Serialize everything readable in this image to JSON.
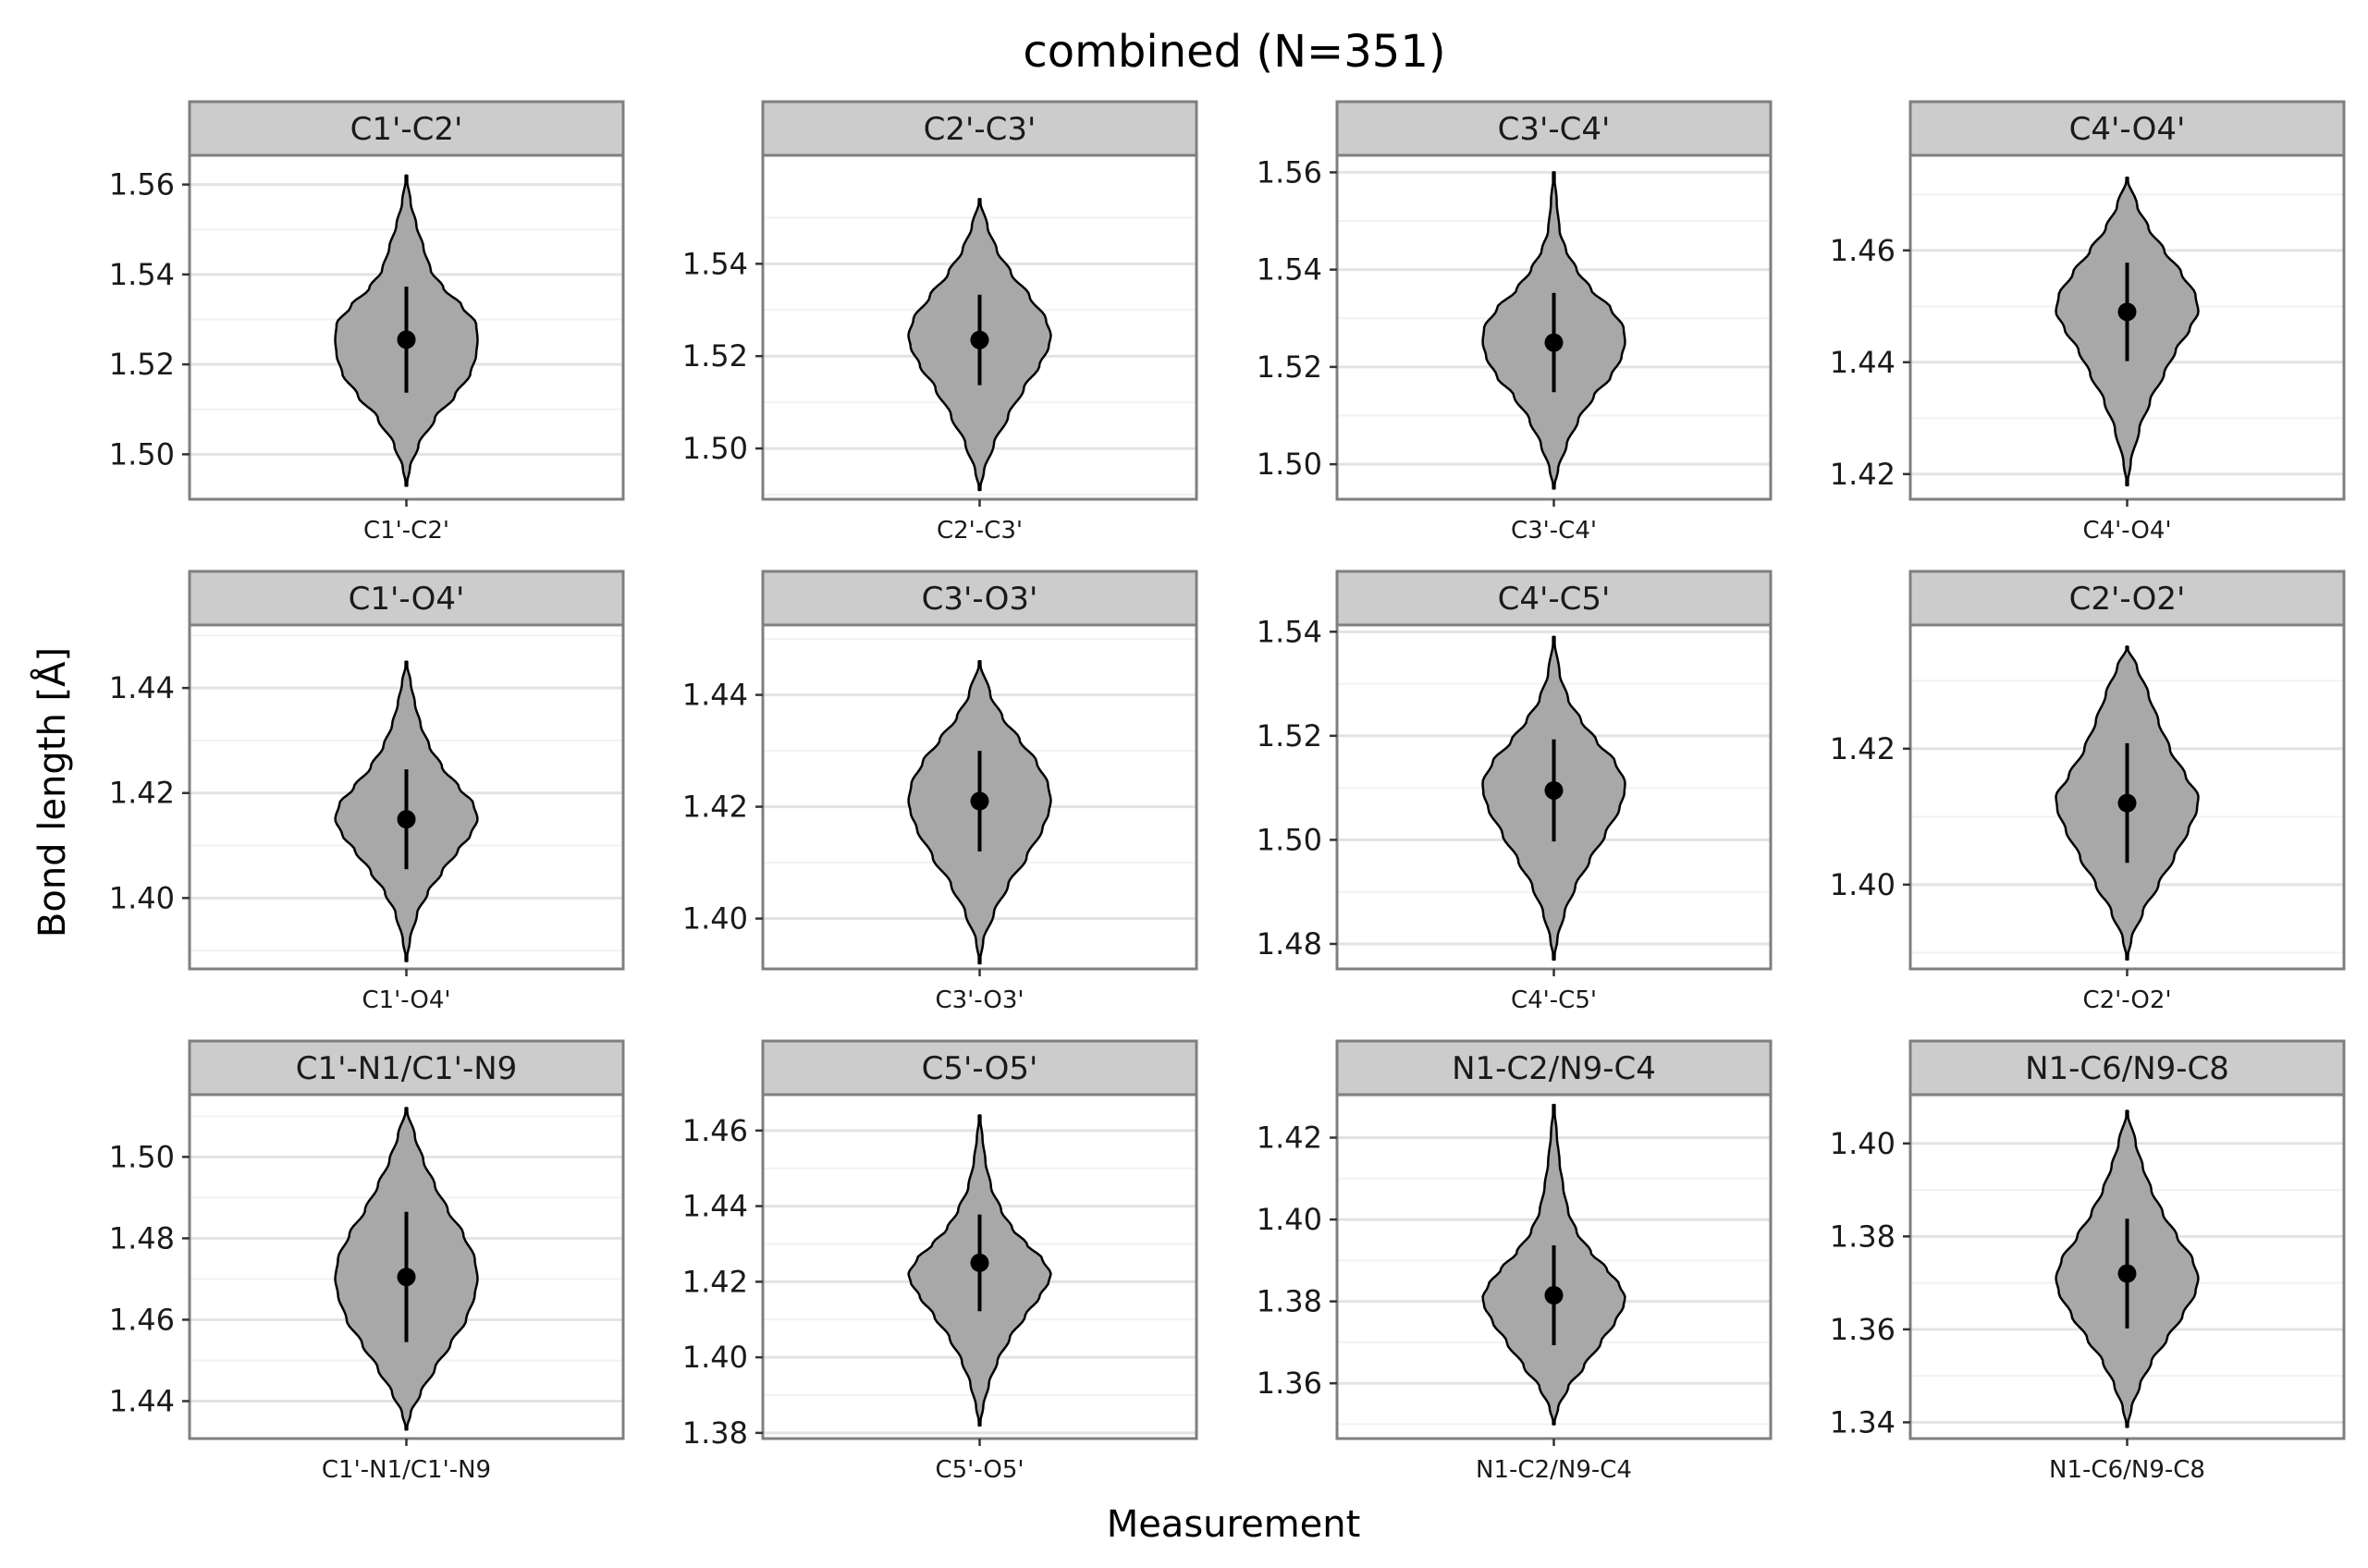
{
  "chart_data": {
    "type": "violin",
    "title": "combined (N=351)",
    "xlabel": "Measurement",
    "ylabel": "Bond length [Å]",
    "grid": true,
    "layout": "facet 3 rows × 4 columns, independent y scales",
    "colors": {
      "violin_fill": "#a8a8a8",
      "strip_fill": "#cccccc",
      "panel_border": "#7f7f7f",
      "grid_major": "#e3e3e3",
      "grid_minor": "#f2f2f2"
    },
    "panels": [
      {
        "label": "C1'-C2'",
        "ylim": [
          1.49,
          1.5665
        ],
        "yticks": [
          1.5,
          1.52,
          1.54,
          1.56
        ],
        "min": 1.493,
        "max": 1.562,
        "mean": 1.5255,
        "sd": 0.0118,
        "shape": [
          [
            1.493,
            0.0
          ],
          [
            1.497,
            0.05
          ],
          [
            1.502,
            0.17
          ],
          [
            1.508,
            0.4
          ],
          [
            1.513,
            0.68
          ],
          [
            1.518,
            0.9
          ],
          [
            1.522,
            0.98
          ],
          [
            1.5255,
            1.0
          ],
          [
            1.529,
            0.98
          ],
          [
            1.533,
            0.78
          ],
          [
            1.537,
            0.52
          ],
          [
            1.541,
            0.34
          ],
          [
            1.546,
            0.24
          ],
          [
            1.551,
            0.14
          ],
          [
            1.556,
            0.06
          ],
          [
            1.562,
            0.0
          ]
        ]
      },
      {
        "label": "C2'-C3'",
        "ylim": [
          1.489,
          1.5635
        ],
        "yticks": [
          1.5,
          1.52,
          1.54
        ],
        "min": 1.491,
        "max": 1.554,
        "mean": 1.5235,
        "sd": 0.0098,
        "shape": [
          [
            1.491,
            0.0
          ],
          [
            1.495,
            0.06
          ],
          [
            1.501,
            0.2
          ],
          [
            1.507,
            0.4
          ],
          [
            1.513,
            0.62
          ],
          [
            1.518,
            0.84
          ],
          [
            1.522,
            0.97
          ],
          [
            1.5245,
            1.0
          ],
          [
            1.528,
            0.93
          ],
          [
            1.533,
            0.7
          ],
          [
            1.538,
            0.44
          ],
          [
            1.543,
            0.24
          ],
          [
            1.548,
            0.11
          ],
          [
            1.554,
            0.0
          ]
        ]
      },
      {
        "label": "C3'-C4'",
        "ylim": [
          1.4928,
          1.5635
        ],
        "yticks": [
          1.5,
          1.52,
          1.54,
          1.56
        ],
        "min": 1.495,
        "max": 1.56,
        "mean": 1.525,
        "sd": 0.0102,
        "shape": [
          [
            1.495,
            0.0
          ],
          [
            1.499,
            0.06
          ],
          [
            1.504,
            0.18
          ],
          [
            1.509,
            0.34
          ],
          [
            1.514,
            0.56
          ],
          [
            1.518,
            0.8
          ],
          [
            1.522,
            0.95
          ],
          [
            1.525,
            1.0
          ],
          [
            1.528,
            0.98
          ],
          [
            1.532,
            0.8
          ],
          [
            1.536,
            0.52
          ],
          [
            1.54,
            0.32
          ],
          [
            1.544,
            0.17
          ],
          [
            1.548,
            0.08
          ],
          [
            1.554,
            0.04
          ],
          [
            1.56,
            0.0
          ]
        ]
      },
      {
        "label": "C4'-O4'",
        "ylim": [
          1.4155,
          1.477
        ],
        "yticks": [
          1.42,
          1.44,
          1.46
        ],
        "min": 1.418,
        "max": 1.473,
        "mean": 1.449,
        "sd": 0.0088,
        "shape": [
          [
            1.418,
            0.0
          ],
          [
            1.422,
            0.05
          ],
          [
            1.428,
            0.17
          ],
          [
            1.433,
            0.32
          ],
          [
            1.438,
            0.52
          ],
          [
            1.442,
            0.68
          ],
          [
            1.446,
            0.88
          ],
          [
            1.449,
            1.0
          ],
          [
            1.452,
            0.96
          ],
          [
            1.456,
            0.76
          ],
          [
            1.46,
            0.52
          ],
          [
            1.464,
            0.3
          ],
          [
            1.468,
            0.14
          ],
          [
            1.473,
            0.0
          ]
        ]
      },
      {
        "label": "C1'-O4'",
        "ylim": [
          1.3865,
          1.452
        ],
        "yticks": [
          1.4,
          1.42,
          1.44
        ],
        "min": 1.388,
        "max": 1.445,
        "mean": 1.415,
        "sd": 0.0095,
        "shape": [
          [
            1.388,
            0.0
          ],
          [
            1.392,
            0.05
          ],
          [
            1.397,
            0.15
          ],
          [
            1.401,
            0.3
          ],
          [
            1.405,
            0.5
          ],
          [
            1.409,
            0.72
          ],
          [
            1.412,
            0.9
          ],
          [
            1.415,
            1.0
          ],
          [
            1.418,
            0.94
          ],
          [
            1.421,
            0.74
          ],
          [
            1.425,
            0.5
          ],
          [
            1.429,
            0.32
          ],
          [
            1.433,
            0.2
          ],
          [
            1.437,
            0.12
          ],
          [
            1.441,
            0.06
          ],
          [
            1.445,
            0.0
          ]
        ]
      },
      {
        "label": "C3'-O3'",
        "ylim": [
          1.391,
          1.4525
        ],
        "yticks": [
          1.4,
          1.42,
          1.44
        ],
        "min": 1.392,
        "max": 1.446,
        "mean": 1.421,
        "sd": 0.009,
        "shape": [
          [
            1.392,
            0.0
          ],
          [
            1.396,
            0.05
          ],
          [
            1.401,
            0.2
          ],
          [
            1.406,
            0.4
          ],
          [
            1.411,
            0.66
          ],
          [
            1.416,
            0.88
          ],
          [
            1.419,
            0.97
          ],
          [
            1.421,
            1.0
          ],
          [
            1.424,
            0.96
          ],
          [
            1.428,
            0.8
          ],
          [
            1.432,
            0.56
          ],
          [
            1.436,
            0.32
          ],
          [
            1.44,
            0.15
          ],
          [
            1.446,
            0.0
          ]
        ]
      },
      {
        "label": "C4'-C5'",
        "ylim": [
          1.4752,
          1.5413
        ],
        "yticks": [
          1.48,
          1.5,
          1.52,
          1.54
        ],
        "min": 1.477,
        "max": 1.539,
        "mean": 1.5095,
        "sd": 0.0098,
        "shape": [
          [
            1.477,
            0.0
          ],
          [
            1.481,
            0.05
          ],
          [
            1.486,
            0.15
          ],
          [
            1.491,
            0.3
          ],
          [
            1.496,
            0.5
          ],
          [
            1.501,
            0.72
          ],
          [
            1.506,
            0.92
          ],
          [
            1.509,
            0.99
          ],
          [
            1.511,
            1.0
          ],
          [
            1.515,
            0.86
          ],
          [
            1.519,
            0.6
          ],
          [
            1.523,
            0.38
          ],
          [
            1.527,
            0.2
          ],
          [
            1.532,
            0.08
          ],
          [
            1.539,
            0.0
          ]
        ]
      },
      {
        "label": "C2'-O2'",
        "ylim": [
          1.3876,
          1.4382
        ],
        "yticks": [
          1.4,
          1.42
        ],
        "min": 1.389,
        "max": 1.435,
        "mean": 1.412,
        "sd": 0.0088,
        "shape": [
          [
            1.389,
            0.0
          ],
          [
            1.392,
            0.06
          ],
          [
            1.396,
            0.22
          ],
          [
            1.4,
            0.44
          ],
          [
            1.404,
            0.66
          ],
          [
            1.408,
            0.86
          ],
          [
            1.411,
            0.98
          ],
          [
            1.413,
            1.0
          ],
          [
            1.416,
            0.82
          ],
          [
            1.42,
            0.6
          ],
          [
            1.424,
            0.44
          ],
          [
            1.428,
            0.3
          ],
          [
            1.432,
            0.14
          ],
          [
            1.435,
            0.0
          ]
        ]
      },
      {
        "label": "C1'-N1/C1'-N9",
        "ylim": [
          1.4308,
          1.5153
        ],
        "yticks": [
          1.44,
          1.46,
          1.48,
          1.5
        ],
        "min": 1.433,
        "max": 1.512,
        "mean": 1.4705,
        "sd": 0.016,
        "shape": [
          [
            1.433,
            0.0
          ],
          [
            1.437,
            0.06
          ],
          [
            1.442,
            0.2
          ],
          [
            1.448,
            0.4
          ],
          [
            1.454,
            0.62
          ],
          [
            1.46,
            0.84
          ],
          [
            1.466,
            0.96
          ],
          [
            1.47,
            1.0
          ],
          [
            1.475,
            0.96
          ],
          [
            1.481,
            0.8
          ],
          [
            1.487,
            0.58
          ],
          [
            1.493,
            0.4
          ],
          [
            1.499,
            0.24
          ],
          [
            1.505,
            0.12
          ],
          [
            1.512,
            0.0
          ]
        ]
      },
      {
        "label": "C5'-O5'",
        "ylim": [
          1.3785,
          1.4695
        ],
        "yticks": [
          1.38,
          1.4,
          1.42,
          1.44,
          1.46
        ],
        "min": 1.382,
        "max": 1.464,
        "mean": 1.425,
        "sd": 0.0128,
        "shape": [
          [
            1.382,
            0.0
          ],
          [
            1.387,
            0.05
          ],
          [
            1.393,
            0.13
          ],
          [
            1.399,
            0.25
          ],
          [
            1.405,
            0.42
          ],
          [
            1.411,
            0.64
          ],
          [
            1.416,
            0.84
          ],
          [
            1.42,
            0.97
          ],
          [
            1.422,
            1.0
          ],
          [
            1.426,
            0.88
          ],
          [
            1.43,
            0.66
          ],
          [
            1.434,
            0.46
          ],
          [
            1.439,
            0.3
          ],
          [
            1.445,
            0.16
          ],
          [
            1.452,
            0.08
          ],
          [
            1.458,
            0.04
          ],
          [
            1.464,
            0.0
          ]
        ]
      },
      {
        "label": "N1-C2/N9-C4",
        "ylim": [
          1.3465,
          1.4305
        ],
        "yticks": [
          1.36,
          1.38,
          1.4,
          1.42
        ],
        "min": 1.35,
        "max": 1.428,
        "mean": 1.3815,
        "sd": 0.0122,
        "shape": [
          [
            1.35,
            0.0
          ],
          [
            1.354,
            0.06
          ],
          [
            1.359,
            0.2
          ],
          [
            1.364,
            0.42
          ],
          [
            1.37,
            0.66
          ],
          [
            1.375,
            0.86
          ],
          [
            1.379,
            0.98
          ],
          [
            1.381,
            1.0
          ],
          [
            1.384,
            0.92
          ],
          [
            1.388,
            0.74
          ],
          [
            1.392,
            0.52
          ],
          [
            1.397,
            0.32
          ],
          [
            1.402,
            0.2
          ],
          [
            1.408,
            0.13
          ],
          [
            1.414,
            0.08
          ],
          [
            1.421,
            0.04
          ],
          [
            1.428,
            0.0
          ]
        ]
      },
      {
        "label": "N1-C6/N9-C8",
        "ylim": [
          1.3365,
          1.4105
        ],
        "yticks": [
          1.34,
          1.36,
          1.38,
          1.4
        ],
        "min": 1.339,
        "max": 1.407,
        "mean": 1.372,
        "sd": 0.0118,
        "shape": [
          [
            1.339,
            0.0
          ],
          [
            1.343,
            0.06
          ],
          [
            1.348,
            0.18
          ],
          [
            1.353,
            0.34
          ],
          [
            1.358,
            0.56
          ],
          [
            1.363,
            0.78
          ],
          [
            1.368,
            0.96
          ],
          [
            1.371,
            1.0
          ],
          [
            1.375,
            0.92
          ],
          [
            1.38,
            0.7
          ],
          [
            1.385,
            0.5
          ],
          [
            1.39,
            0.34
          ],
          [
            1.395,
            0.22
          ],
          [
            1.4,
            0.12
          ],
          [
            1.407,
            0.0
          ]
        ]
      }
    ]
  }
}
